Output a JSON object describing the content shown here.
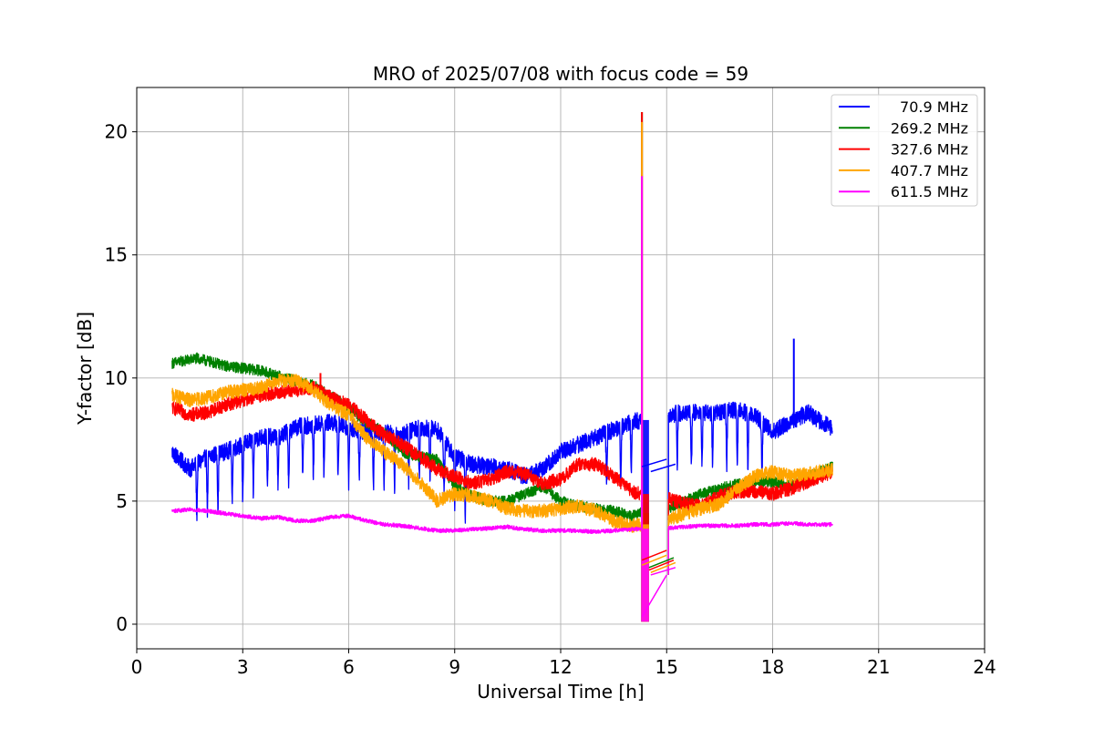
{
  "chart_data": {
    "type": "line",
    "title": "MRO of 2025/07/08 with focus code = 59",
    "xlabel": "Universal Time [h]",
    "ylabel": "Y-factor [dB]",
    "xlim": [
      0,
      24
    ],
    "ylim": [
      -1,
      21.8
    ],
    "xticks": [
      0,
      3,
      6,
      9,
      12,
      15,
      18,
      21,
      24
    ],
    "yticks": [
      0,
      5,
      10,
      15,
      20
    ],
    "grid": true,
    "legend_position": "top-right",
    "series": [
      {
        "name": "70.9 MHz",
        "color": "#0000ff",
        "noise": 0.35,
        "points": [
          [
            1.0,
            7.0
          ],
          [
            1.5,
            6.3
          ],
          [
            2.0,
            6.8
          ],
          [
            2.5,
            7.0
          ],
          [
            3.0,
            7.3
          ],
          [
            3.5,
            7.6
          ],
          [
            4.0,
            7.6
          ],
          [
            4.5,
            8.0
          ],
          [
            5.0,
            8.1
          ],
          [
            5.5,
            8.2
          ],
          [
            6.0,
            8.0
          ],
          [
            6.5,
            7.8
          ],
          [
            7.0,
            7.8
          ],
          [
            7.5,
            7.7
          ],
          [
            8.0,
            8.0
          ],
          [
            8.5,
            7.9
          ],
          [
            9.0,
            6.8
          ],
          [
            9.5,
            6.5
          ],
          [
            10.0,
            6.4
          ],
          [
            10.5,
            6.3
          ],
          [
            11.0,
            6.0
          ],
          [
            11.5,
            6.3
          ],
          [
            12.0,
            7.0
          ],
          [
            12.5,
            7.3
          ],
          [
            13.0,
            7.6
          ],
          [
            13.5,
            7.9
          ],
          [
            14.0,
            8.2
          ],
          [
            14.3,
            8.3
          ],
          [
            14.5,
            8.5
          ],
          [
            15.0,
            8.5
          ],
          [
            15.5,
            8.6
          ],
          [
            16.0,
            8.6
          ],
          [
            16.5,
            8.6
          ],
          [
            17.0,
            8.7
          ],
          [
            17.5,
            8.5
          ],
          [
            18.0,
            7.8
          ],
          [
            18.5,
            8.2
          ],
          [
            19.0,
            8.6
          ],
          [
            19.7,
            7.9
          ]
        ],
        "dips": [
          1.7,
          2.0,
          2.3,
          2.7,
          3.0,
          3.3,
          3.7,
          4.0,
          4.3,
          4.7,
          5.0,
          5.3,
          5.7,
          6.0,
          6.3,
          6.7,
          7.0,
          7.3,
          7.7,
          8.0,
          8.3,
          8.7,
          9.0,
          9.3,
          13.3,
          13.7,
          14.0,
          15.3,
          15.7,
          16.0,
          16.3,
          16.7,
          17.0,
          17.3,
          17.7
        ],
        "dip_depth": 2.3,
        "spikes": [
          [
            18.6,
            11.6
          ]
        ]
      },
      {
        "name": "269.2 MHz",
        "color": "#008000",
        "noise": 0.22,
        "points": [
          [
            1.0,
            10.6
          ],
          [
            1.7,
            10.8
          ],
          [
            2.5,
            10.5
          ],
          [
            3.5,
            10.3
          ],
          [
            4.2,
            10.0
          ],
          [
            5.0,
            9.7
          ],
          [
            5.8,
            9.0
          ],
          [
            6.5,
            8.2
          ],
          [
            7.0,
            7.8
          ],
          [
            7.5,
            7.0
          ],
          [
            8.0,
            6.8
          ],
          [
            8.5,
            6.7
          ],
          [
            9.0,
            5.6
          ],
          [
            9.5,
            5.2
          ],
          [
            10.0,
            5.0
          ],
          [
            10.5,
            5.0
          ],
          [
            11.0,
            5.3
          ],
          [
            11.5,
            5.6
          ],
          [
            12.0,
            5.0
          ],
          [
            12.5,
            4.8
          ],
          [
            13.0,
            4.7
          ],
          [
            13.5,
            4.6
          ],
          [
            14.0,
            4.4
          ],
          [
            14.5,
            4.6
          ],
          [
            15.0,
            4.7
          ],
          [
            15.5,
            5.0
          ],
          [
            16.0,
            5.3
          ],
          [
            16.5,
            5.5
          ],
          [
            17.0,
            5.7
          ],
          [
            17.5,
            5.8
          ],
          [
            18.0,
            5.8
          ],
          [
            18.5,
            5.6
          ],
          [
            19.0,
            6.0
          ],
          [
            19.7,
            6.4
          ]
        ],
        "dips": [],
        "dip_depth": 0,
        "spikes": [
          [
            14.3,
            20.8
          ]
        ]
      },
      {
        "name": "327.6 MHz",
        "color": "#ff0000",
        "noise": 0.28,
        "points": [
          [
            1.0,
            8.8
          ],
          [
            1.5,
            8.5
          ],
          [
            2.0,
            8.6
          ],
          [
            2.5,
            8.9
          ],
          [
            3.0,
            9.1
          ],
          [
            3.5,
            9.3
          ],
          [
            4.0,
            9.4
          ],
          [
            4.5,
            9.5
          ],
          [
            5.0,
            9.6
          ],
          [
            5.5,
            9.2
          ],
          [
            6.0,
            8.9
          ],
          [
            6.5,
            8.3
          ],
          [
            7.0,
            7.7
          ],
          [
            7.5,
            7.3
          ],
          [
            8.0,
            6.8
          ],
          [
            8.5,
            6.3
          ],
          [
            9.0,
            6.0
          ],
          [
            9.5,
            5.7
          ],
          [
            10.0,
            5.9
          ],
          [
            10.5,
            6.2
          ],
          [
            11.0,
            6.1
          ],
          [
            11.5,
            5.7
          ],
          [
            12.0,
            5.9
          ],
          [
            12.5,
            6.5
          ],
          [
            13.0,
            6.5
          ],
          [
            13.5,
            6.0
          ],
          [
            14.0,
            5.4
          ],
          [
            14.5,
            5.2
          ],
          [
            15.0,
            5.1
          ],
          [
            15.5,
            4.9
          ],
          [
            16.0,
            4.8
          ],
          [
            16.5,
            5.2
          ],
          [
            17.0,
            5.4
          ],
          [
            17.5,
            5.4
          ],
          [
            18.0,
            5.3
          ],
          [
            18.5,
            5.5
          ],
          [
            19.0,
            5.8
          ],
          [
            19.7,
            6.2
          ]
        ],
        "dips": [],
        "dip_depth": 0,
        "spikes": [
          [
            5.2,
            10.2
          ],
          [
            14.3,
            20.8
          ]
        ]
      },
      {
        "name": "407.7 MHz",
        "color": "#ffa500",
        "noise": 0.28,
        "points": [
          [
            1.0,
            9.3
          ],
          [
            1.5,
            9.1
          ],
          [
            2.0,
            9.2
          ],
          [
            2.5,
            9.4
          ],
          [
            3.0,
            9.5
          ],
          [
            3.5,
            9.6
          ],
          [
            4.0,
            9.9
          ],
          [
            4.5,
            9.9
          ],
          [
            5.0,
            9.5
          ],
          [
            5.5,
            8.9
          ],
          [
            6.0,
            8.5
          ],
          [
            6.5,
            7.6
          ],
          [
            7.0,
            7.0
          ],
          [
            7.5,
            6.5
          ],
          [
            8.0,
            5.8
          ],
          [
            8.5,
            5.0
          ],
          [
            9.0,
            5.3
          ],
          [
            9.5,
            5.2
          ],
          [
            10.0,
            5.0
          ],
          [
            10.5,
            4.7
          ],
          [
            11.0,
            4.6
          ],
          [
            11.5,
            4.6
          ],
          [
            12.0,
            4.7
          ],
          [
            12.5,
            4.8
          ],
          [
            13.0,
            4.6
          ],
          [
            13.5,
            4.2
          ],
          [
            14.0,
            4.0
          ],
          [
            14.5,
            4.1
          ],
          [
            15.0,
            4.2
          ],
          [
            15.5,
            4.5
          ],
          [
            16.0,
            4.7
          ],
          [
            16.5,
            4.9
          ],
          [
            17.0,
            5.5
          ],
          [
            17.5,
            6.0
          ],
          [
            18.0,
            6.2
          ],
          [
            18.5,
            6.0
          ],
          [
            19.0,
            6.1
          ],
          [
            19.7,
            6.3
          ]
        ],
        "dips": [],
        "dip_depth": 0,
        "spikes": [
          [
            14.3,
            20.4
          ]
        ]
      },
      {
        "name": "611.5 MHz",
        "color": "#ff00ff",
        "noise": 0.08,
        "points": [
          [
            1.0,
            4.6
          ],
          [
            1.5,
            4.65
          ],
          [
            2.0,
            4.6
          ],
          [
            2.5,
            4.5
          ],
          [
            3.0,
            4.4
          ],
          [
            3.5,
            4.3
          ],
          [
            4.0,
            4.35
          ],
          [
            4.5,
            4.2
          ],
          [
            5.0,
            4.2
          ],
          [
            5.5,
            4.35
          ],
          [
            6.0,
            4.4
          ],
          [
            6.5,
            4.2
          ],
          [
            7.0,
            4.05
          ],
          [
            7.5,
            4.0
          ],
          [
            8.0,
            3.9
          ],
          [
            8.5,
            3.8
          ],
          [
            9.0,
            3.8
          ],
          [
            9.5,
            3.85
          ],
          [
            10.0,
            3.9
          ],
          [
            10.5,
            3.95
          ],
          [
            11.0,
            3.85
          ],
          [
            11.5,
            3.8
          ],
          [
            12.0,
            3.8
          ],
          [
            12.5,
            3.8
          ],
          [
            13.0,
            3.75
          ],
          [
            13.5,
            3.8
          ],
          [
            14.0,
            3.85
          ],
          [
            14.5,
            3.9
          ],
          [
            15.0,
            3.9
          ],
          [
            15.5,
            3.95
          ],
          [
            16.0,
            4.0
          ],
          [
            16.5,
            4.0
          ],
          [
            17.0,
            4.0
          ],
          [
            17.5,
            4.05
          ],
          [
            18.0,
            4.05
          ],
          [
            18.5,
            4.1
          ],
          [
            19.0,
            4.05
          ],
          [
            19.7,
            4.05
          ]
        ],
        "dips": [],
        "dip_depth": 0,
        "spikes": [
          [
            14.3,
            18.2
          ]
        ]
      }
    ],
    "gap_segments": [
      {
        "series": 0,
        "x": [
          14.3,
          15.0
        ],
        "y": [
          6.4,
          6.7
        ]
      },
      {
        "series": 0,
        "x": [
          14.55,
          15.25
        ],
        "y": [
          6.2,
          6.5
        ]
      },
      {
        "series": 1,
        "x": [
          14.5,
          15.2
        ],
        "y": [
          2.3,
          2.7
        ]
      },
      {
        "series": 2,
        "x": [
          14.3,
          15.0
        ],
        "y": [
          2.6,
          3.0
        ]
      },
      {
        "series": 2,
        "x": [
          14.5,
          15.2
        ],
        "y": [
          2.2,
          2.6
        ]
      },
      {
        "series": 3,
        "x": [
          14.3,
          15.0
        ],
        "y": [
          2.4,
          2.8
        ]
      },
      {
        "series": 3,
        "x": [
          14.55,
          15.25
        ],
        "y": [
          2.1,
          2.5
        ]
      },
      {
        "series": 4,
        "x": [
          14.3,
          15.0
        ],
        "y": [
          0.3,
          2.0
        ]
      },
      {
        "series": 4,
        "x": [
          14.55,
          15.25
        ],
        "y": [
          2.0,
          2.3
        ]
      }
    ],
    "gap_drop": {
      "x": [
        14.28,
        14.5
      ],
      "y_low": 0.1
    }
  }
}
